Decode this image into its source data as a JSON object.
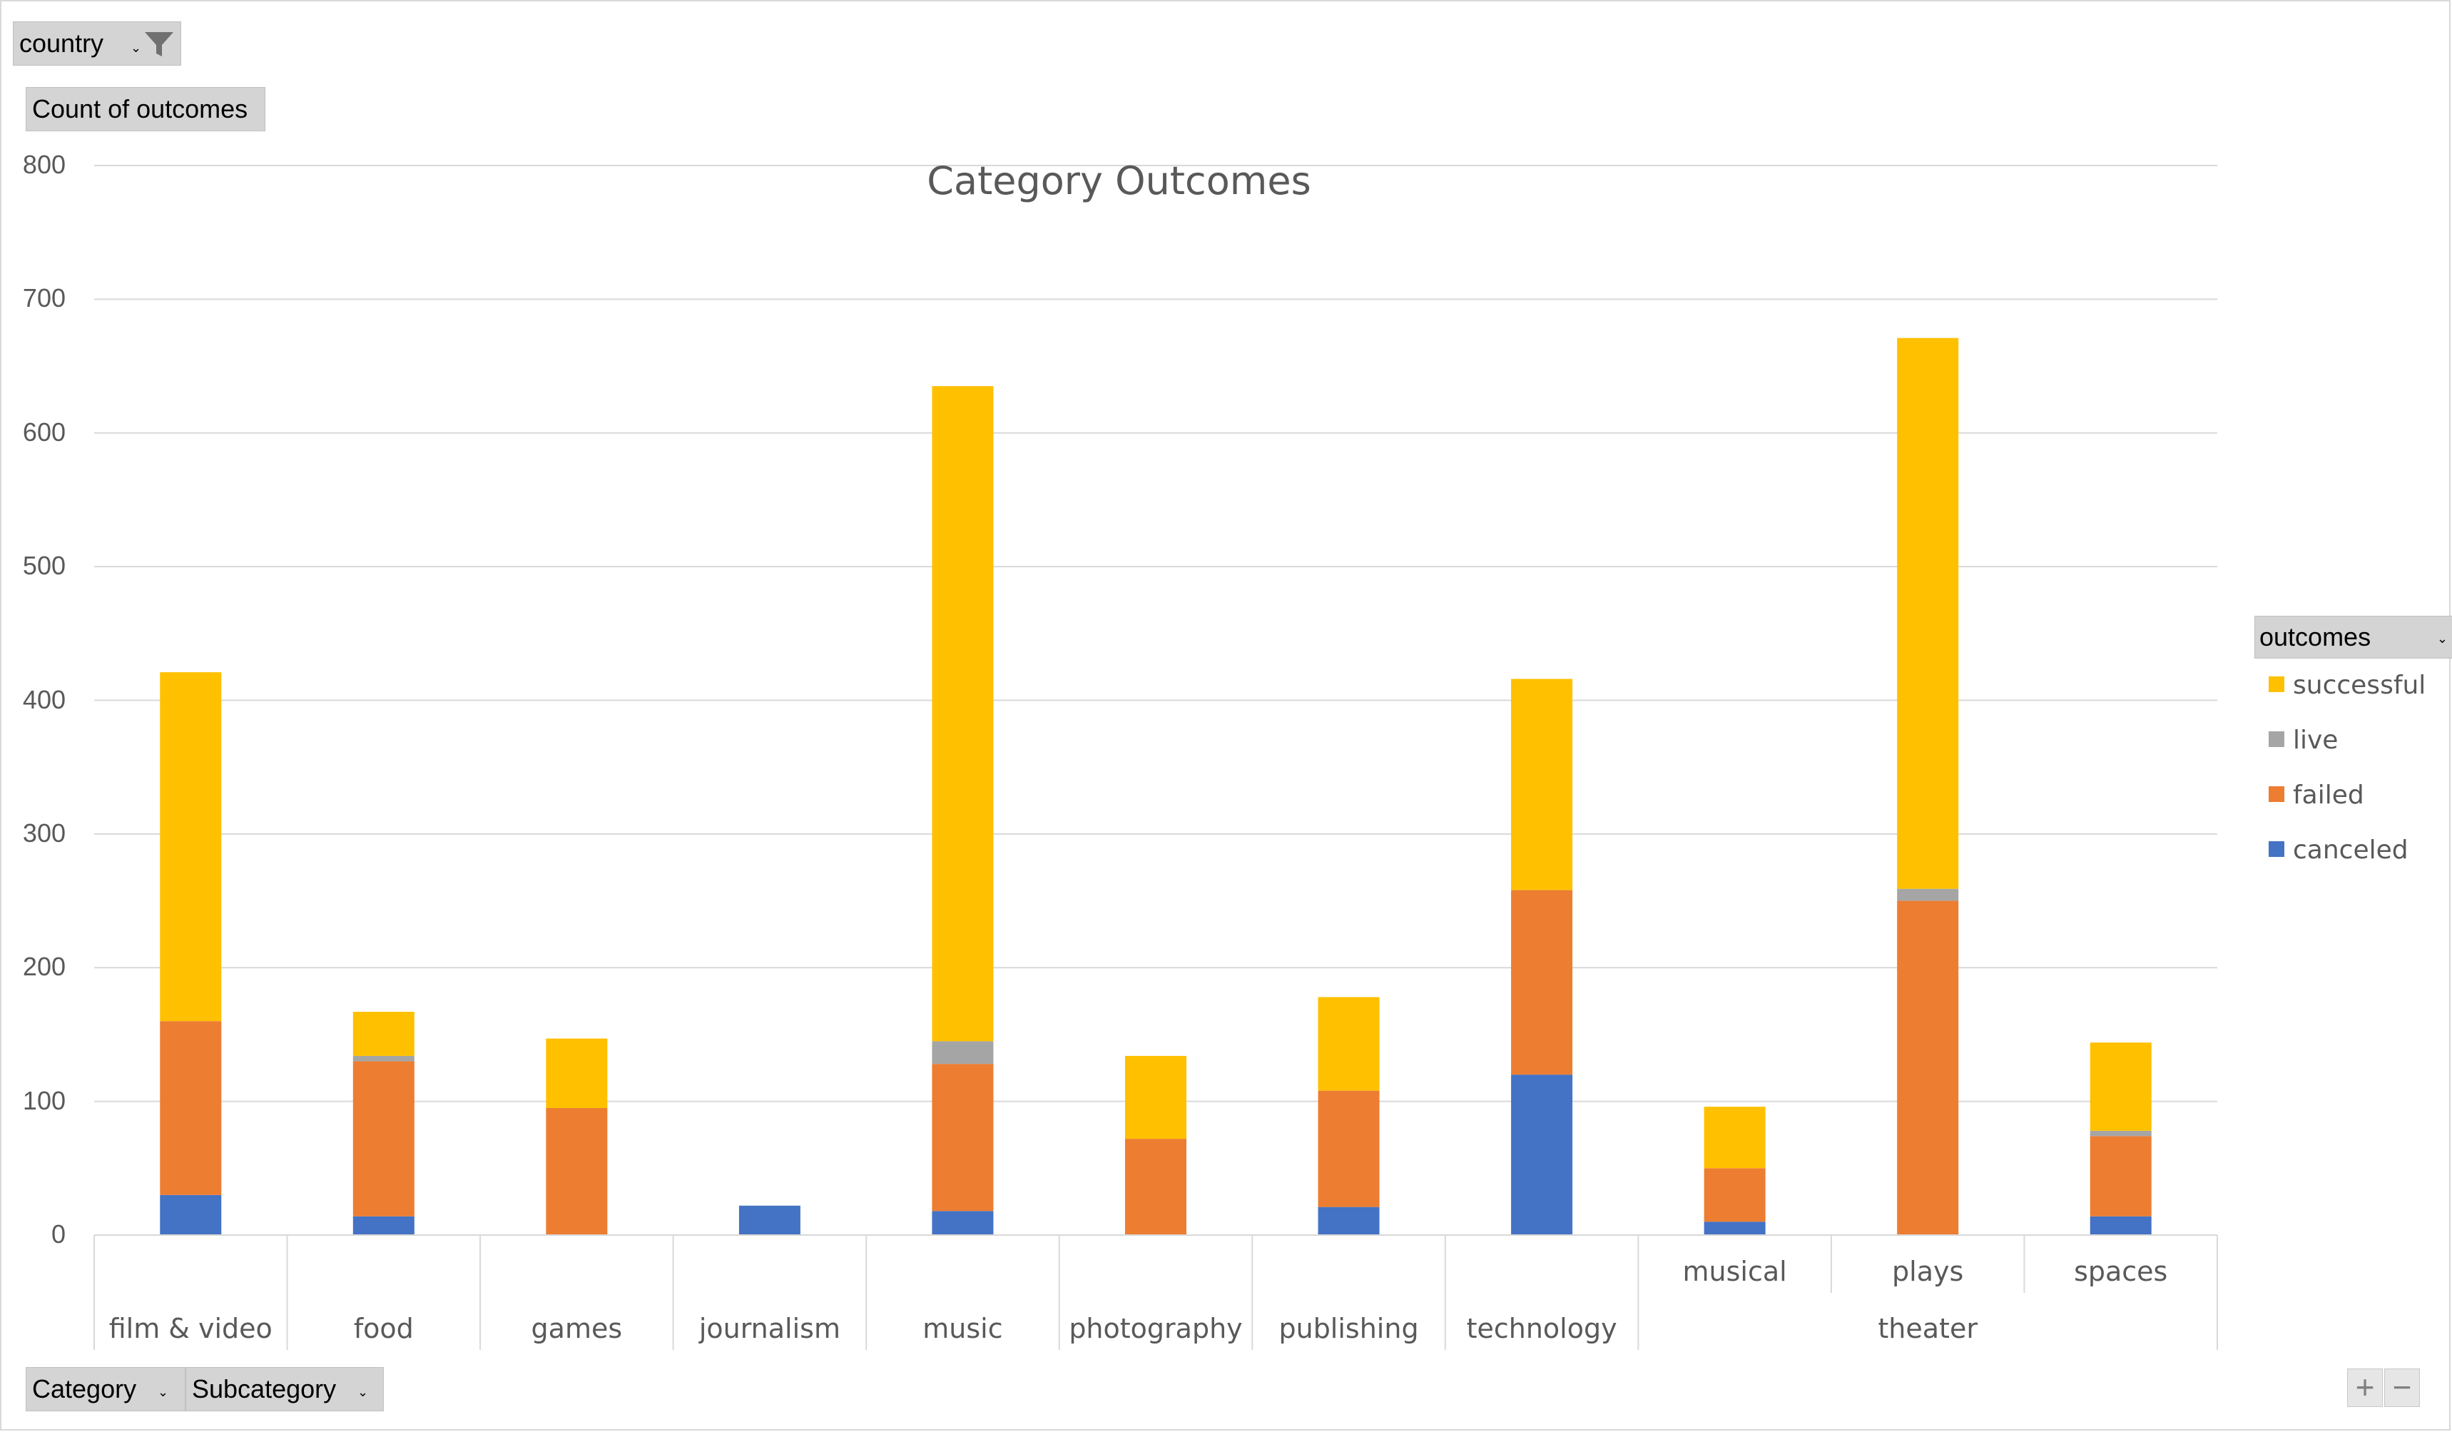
{
  "filters": {
    "country_label": "country",
    "values_label": "Count of outcomes",
    "category_label": "Category",
    "subcategory_label": "Subcategory"
  },
  "legend": {
    "title": "outcomes",
    "items": [
      {
        "label": "successful",
        "color": "#FFC000"
      },
      {
        "label": "live",
        "color": "#A5A5A5"
      },
      {
        "label": "failed",
        "color": "#ED7D31"
      },
      {
        "label": "canceled",
        "color": "#4472C4"
      }
    ]
  },
  "zoom": {
    "plus": "+",
    "minus": "−"
  },
  "chart_data": {
    "type": "bar",
    "stacked": true,
    "title": "Category Outcomes",
    "xlabel": "",
    "ylabel": "",
    "ylim": [
      0,
      800
    ],
    "yticks": [
      0,
      100,
      200,
      300,
      400,
      500,
      600,
      700,
      800
    ],
    "grid": true,
    "legend_position": "right",
    "categories": [
      "film & video",
      "food",
      "games",
      "journalism",
      "music",
      "photography",
      "publishing",
      "technology",
      "musical",
      "plays",
      "spaces"
    ],
    "category_groups": [
      {
        "label": "film & video",
        "subcategories": [
          ""
        ]
      },
      {
        "label": "food",
        "subcategories": [
          ""
        ]
      },
      {
        "label": "games",
        "subcategories": [
          ""
        ]
      },
      {
        "label": "journalism",
        "subcategories": [
          ""
        ]
      },
      {
        "label": "music",
        "subcategories": [
          ""
        ]
      },
      {
        "label": "photography",
        "subcategories": [
          ""
        ]
      },
      {
        "label": "publishing",
        "subcategories": [
          ""
        ]
      },
      {
        "label": "technology",
        "subcategories": [
          ""
        ]
      },
      {
        "label": "theater",
        "subcategories": [
          "musical",
          "plays",
          "spaces"
        ]
      }
    ],
    "series": [
      {
        "name": "canceled",
        "color": "#4472C4",
        "values": [
          30,
          14,
          0,
          22,
          18,
          0,
          21,
          120,
          10,
          0,
          14
        ]
      },
      {
        "name": "failed",
        "color": "#ED7D31",
        "values": [
          130,
          116,
          95,
          0,
          110,
          72,
          87,
          138,
          40,
          250,
          60
        ]
      },
      {
        "name": "live",
        "color": "#A5A5A5",
        "values": [
          0,
          4,
          0,
          0,
          17,
          0,
          0,
          0,
          0,
          9,
          4
        ]
      },
      {
        "name": "successful",
        "color": "#FFC000",
        "values": [
          261,
          33,
          52,
          0,
          490,
          62,
          70,
          158,
          46,
          412,
          66
        ]
      }
    ]
  }
}
